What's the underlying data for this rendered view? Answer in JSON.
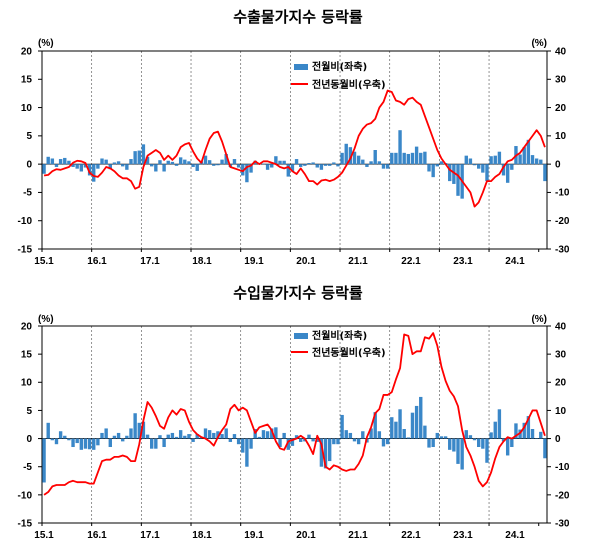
{
  "colors": {
    "bar": "#3a87c8",
    "line": "#ff0000",
    "grid": "#666666",
    "axis": "#000000"
  },
  "chart_data": [
    {
      "type": "bar+line",
      "title": "수출물가지수 등락률",
      "left_unit": "(%)",
      "right_unit": "(%)",
      "left_ylim": [
        -15,
        20
      ],
      "right_ylim": [
        -30,
        40
      ],
      "left_ticks": [
        "20",
        "15",
        "10",
        "5",
        "0",
        "-5",
        "-10",
        "-15"
      ],
      "right_ticks": [
        "40",
        "30",
        "20",
        "10",
        "0",
        "-10",
        "-20",
        "-30"
      ],
      "x_start": "2015-01",
      "x_tick_labels": [
        "15.1",
        "16.1",
        "17.1",
        "18.1",
        "19.1",
        "20.1",
        "21.1",
        "22.1",
        "23.1",
        "24.1"
      ],
      "legend": [
        "전월비(좌축)",
        "전년동월비(우축)"
      ],
      "series": [
        {
          "name": "전월비(좌축)",
          "axis": "left",
          "type": "bar",
          "values": [
            -1.7,
            1.3,
            1.0,
            -0.5,
            0.9,
            1.1,
            0.6,
            -0.5,
            -0.8,
            -1.3,
            -0.6,
            -2.0,
            -3.1,
            -0.8,
            1.0,
            0.8,
            -0.9,
            0.3,
            0.5,
            -0.4,
            -1.0,
            0.9,
            2.3,
            2.4,
            3.5,
            1.3,
            -0.4,
            -1.3,
            0.7,
            -1.3,
            0.6,
            0.4,
            -0.3,
            1.2,
            0.8,
            0.5,
            -0.5,
            -1.2,
            0.5,
            1.5,
            0.7,
            -0.3,
            -0.2,
            0.8,
            1.8,
            -0.5,
            0.9,
            -0.6,
            -2.0,
            -3.2,
            -1.5,
            0.6,
            0.2,
            0.1,
            -1.0,
            -0.6,
            1.4,
            0.6,
            0.6,
            -2.2,
            -1.3,
            0.9,
            -0.5,
            -0.3,
            0.2,
            0.3,
            -0.6,
            -1.0,
            -0.3,
            -0.3,
            0.3,
            -0.4,
            2.0,
            3.6,
            3.0,
            2.2,
            1.5,
            0.8,
            -0.5,
            0.5,
            2.5,
            0.5,
            -0.8,
            -0.8,
            2.0,
            2.0,
            6.0,
            2.0,
            1.8,
            2.0,
            3.1,
            2.0,
            2.2,
            -1.3,
            -2.3,
            -0.4,
            0.5,
            0.2,
            -3.0,
            -3.5,
            -5.6,
            -6.1,
            1.5,
            1.0,
            -0.2,
            -0.8,
            -1.5,
            -3.0,
            1.4,
            1.5,
            2.2,
            -2.0,
            -3.3,
            -1.0,
            3.2,
            1.7,
            3.0,
            4.3,
            1.6,
            1.0,
            0.8,
            -3.0
          ]
        },
        {
          "name": "전년동월비(우축)",
          "axis": "right",
          "type": "line",
          "values": [
            -4.0,
            -3.8,
            -2.5,
            -1.8,
            -2.0,
            -1.5,
            -1.0,
            0.5,
            1.2,
            1.0,
            0.4,
            -3.0,
            -4.2,
            -4.5,
            -3.0,
            -1.0,
            -1.5,
            -2.5,
            -4.0,
            -5.0,
            -5.0,
            -6.0,
            -8.7,
            -8.0,
            -1.0,
            3.0,
            4.0,
            5.0,
            4.0,
            1.5,
            3.0,
            1.5,
            3.0,
            6.0,
            7.0,
            7.5,
            4.5,
            2.0,
            0.5,
            5.0,
            9.0,
            11.0,
            11.5,
            8.0,
            3.5,
            -1.0,
            -1.5,
            -2.0,
            -2.5,
            -1.0,
            -0.5,
            1.0,
            0.0,
            1.0,
            1.0,
            0.5,
            0.0,
            -1.0,
            -1.5,
            -1.0,
            -2.5,
            -3.5,
            -1.5,
            -3.5,
            -6.0,
            -6.0,
            -7.2,
            -5.8,
            -5.5,
            -6.0,
            -5.5,
            -4.5,
            -3.0,
            -0.5,
            2.0,
            5.5,
            10.0,
            12.5,
            14.0,
            14.5,
            16.0,
            20.0,
            22.0,
            26.0,
            25.5,
            22.5,
            22.0,
            21.0,
            23.0,
            23.5,
            22.0,
            21.0,
            17.0,
            13.0,
            9.0,
            5.0,
            2.0,
            0.0,
            -2.0,
            -3.0,
            -4.0,
            -6.0,
            -8.0,
            -10.0,
            -15.0,
            -13.5,
            -10.0,
            -6.0,
            -6.0,
            -4.5,
            -3.5,
            -1.0,
            1.0,
            1.5,
            3.0,
            4.0,
            6.0,
            8.0,
            10.0,
            12.0,
            10.0,
            6.0
          ]
        }
      ]
    },
    {
      "type": "bar+line",
      "title": "수입물가지수 등락률",
      "left_unit": "(%)",
      "right_unit": "(%)",
      "left_ylim": [
        -15,
        20
      ],
      "right_ylim": [
        -30,
        40
      ],
      "left_ticks": [
        "20",
        "15",
        "10",
        "5",
        "0",
        "-5",
        "-10",
        "-15"
      ],
      "right_ticks": [
        "40",
        "30",
        "20",
        "10",
        "0",
        "-10",
        "-20",
        "-30"
      ],
      "x_start": "2015-01",
      "x_tick_labels": [
        "15.1",
        "16.1",
        "17.1",
        "18.1",
        "19.1",
        "20.1",
        "21.1",
        "22.1",
        "23.1",
        "24.1"
      ],
      "legend": [
        "전월비(좌축)",
        "전년동월비(우축)"
      ],
      "series": [
        {
          "name": "전월비(좌축)",
          "axis": "left",
          "type": "bar",
          "values": [
            -7.8,
            2.8,
            -0.3,
            -1.0,
            1.3,
            0.5,
            -0.3,
            -1.5,
            -0.8,
            -2.0,
            -1.8,
            -1.9,
            -2.0,
            -1.2,
            1.0,
            1.8,
            -1.5,
            0.5,
            1.0,
            -0.5,
            0.5,
            1.8,
            4.5,
            2.8,
            3.0,
            0.7,
            -1.8,
            -1.8,
            0.6,
            -1.5,
            0.7,
            1.0,
            0.3,
            1.5,
            0.5,
            0.8,
            -0.6,
            0.8,
            0.3,
            1.8,
            1.5,
            1.0,
            1.3,
            0.8,
            1.8,
            -0.6,
            0.8,
            -1.0,
            -2.5,
            -5.0,
            -1.8,
            1.7,
            0.3,
            1.5,
            1.3,
            1.8,
            2.0,
            -1.5,
            1.0,
            -2.0,
            -1.3,
            0.6,
            -0.6,
            -0.5,
            0.7,
            -0.5,
            -0.6,
            -5.0,
            -5.3,
            -4.0,
            -1.0,
            -1.0,
            4.2,
            1.5,
            1.0,
            -0.5,
            -1.0,
            1.3,
            -0.7,
            1.8,
            4.7,
            1.3,
            -1.4,
            -1.0,
            3.8,
            3.0,
            5.2,
            1.7,
            0.2,
            4.6,
            5.8,
            7.4,
            2.3,
            -1.6,
            -1.5,
            1.0,
            0.4,
            0.4,
            -2.0,
            -2.3,
            -4.5,
            -5.5,
            1.5,
            0.6,
            -0.3,
            -1.5,
            -1.8,
            -4.3,
            1.1,
            3.0,
            5.2,
            -0.5,
            -3.0,
            -1.5,
            2.7,
            1.6,
            2.8,
            4.0,
            1.7,
            0.1,
            1.2,
            -3.5
          ]
        },
        {
          "name": "전년동월비(우축)",
          "axis": "right",
          "type": "line",
          "values": [
            -20.0,
            -19.0,
            -17.0,
            -16.5,
            -16.5,
            -16.5,
            -15.5,
            -15.0,
            -15.5,
            -15.5,
            -15.5,
            -16.0,
            -16.0,
            -12.0,
            -8.0,
            -7.5,
            -7.5,
            -6.5,
            -6.5,
            -6.0,
            -6.5,
            -8.0,
            -8.0,
            -2.0,
            6.5,
            13.0,
            11.0,
            8.0,
            4.5,
            3.5,
            7.5,
            10.0,
            8.5,
            10.5,
            10.0,
            6.0,
            3.0,
            1.5,
            0.5,
            0.0,
            -1.0,
            -2.5,
            0.5,
            3.0,
            5.0,
            10.5,
            12.0,
            10.0,
            11.0,
            10.0,
            6.0,
            2.0,
            4.0,
            4.5,
            5.0,
            3.0,
            -1.0,
            -3.5,
            -4.0,
            -1.0,
            -0.5,
            0.0,
            1.0,
            0.0,
            -2.5,
            -5.5,
            1.0,
            -2.0,
            -10.0,
            -11.0,
            -9.5,
            -10.0,
            -11.0,
            -11.5,
            -11.0,
            -11.0,
            -9.0,
            -6.0,
            0.5,
            4.0,
            9.0,
            10.5,
            15.5,
            15.5,
            16.5,
            21.0,
            25.0,
            37.0,
            36.5,
            30.0,
            31.0,
            31.0,
            36.0,
            35.5,
            37.5,
            33.0,
            25.5,
            20.5,
            17.0,
            15.0,
            11.5,
            3.0,
            -3.0,
            -6.0,
            -10.0,
            -15.0,
            -17.0,
            -15.5,
            -12.0,
            -7.0,
            -3.0,
            -1.0,
            0.5,
            0.0,
            1.0,
            2.0,
            4.0,
            7.0,
            10.0,
            10.0,
            5.5,
            1.0
          ]
        }
      ]
    }
  ]
}
